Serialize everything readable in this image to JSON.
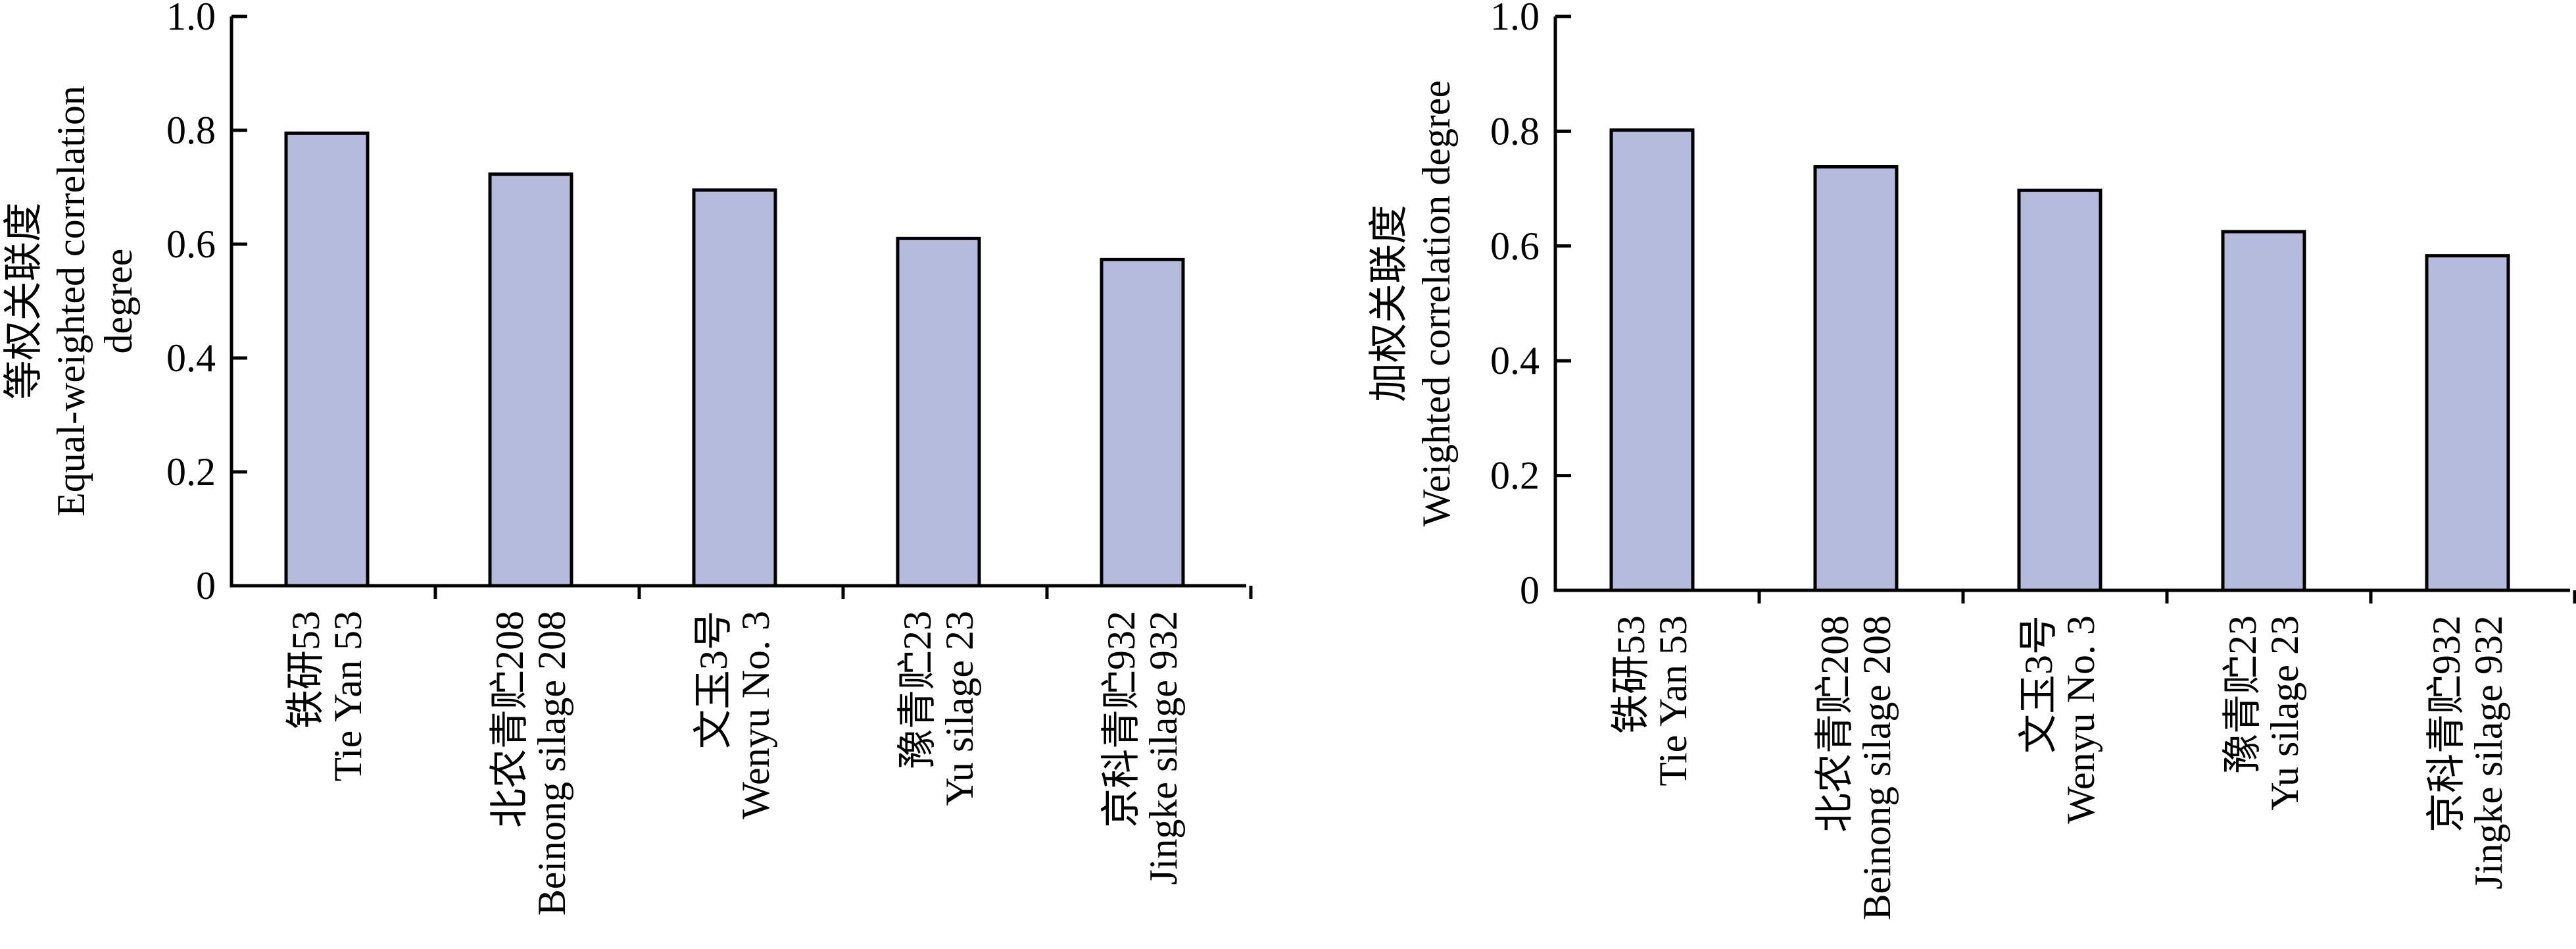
{
  "colors": {
    "bar_fill": "#b4bbdc",
    "axis": "#000000"
  },
  "chart_data": [
    {
      "type": "bar",
      "ylabel_cn": "等权关联度",
      "ylabel_en_lines": [
        "Equal-weighted correlation",
        "degree"
      ],
      "ylim": [
        0,
        1.0
      ],
      "yticks": [
        "0",
        "0.2",
        "0.4",
        "0.6",
        "0.8",
        "1.0"
      ],
      "categories": [
        {
          "cn": "铁研53",
          "en": "Tie Yan 53"
        },
        {
          "cn": "北农青贮208",
          "en": "Beinong silage 208"
        },
        {
          "cn": "文玉3号",
          "en": "Wenyu No. 3"
        },
        {
          "cn": "豫青贮23",
          "en": "Yu silage 23"
        },
        {
          "cn": "京科青贮932",
          "en": "Jingke silage 932"
        }
      ],
      "values": [
        0.795,
        0.723,
        0.695,
        0.61,
        0.573
      ],
      "grid": false,
      "legend": "none"
    },
    {
      "type": "bar",
      "ylabel_cn": "加权关联度",
      "ylabel_en_lines": [
        "Weighted correlation degree"
      ],
      "ylim": [
        0,
        1.0
      ],
      "yticks": [
        "0",
        "0.2",
        "0.4",
        "0.6",
        "0.8",
        "1.0"
      ],
      "categories": [
        {
          "cn": "铁研53",
          "en": "Tie Yan 53"
        },
        {
          "cn": "北农青贮208",
          "en": "Beinong silage 208"
        },
        {
          "cn": "文玉3号",
          "en": "Wenyu No. 3"
        },
        {
          "cn": "豫青贮23",
          "en": "Yu silage 23"
        },
        {
          "cn": "京科青贮932",
          "en": "Jingke silage 932"
        }
      ],
      "values": [
        0.802,
        0.738,
        0.697,
        0.625,
        0.583
      ],
      "grid": false,
      "legend": "none"
    }
  ]
}
